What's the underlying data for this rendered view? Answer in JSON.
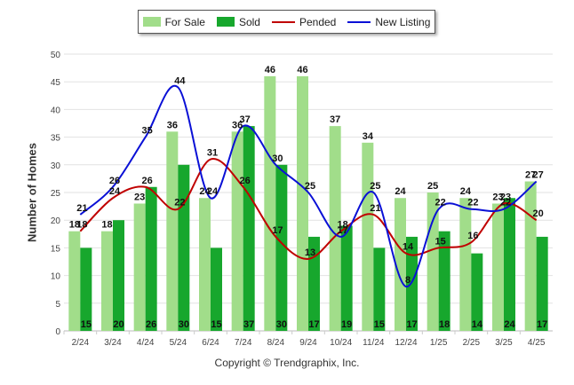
{
  "chart_data": {
    "type": "bar",
    "ylabel": "Number of Homes",
    "xlabel": "",
    "ylim": [
      0,
      50
    ],
    "yticks": [
      0,
      5,
      10,
      15,
      20,
      25,
      30,
      35,
      40,
      45,
      50
    ],
    "grid": true,
    "legend_position": "top-center",
    "categories": [
      "2/24",
      "3/24",
      "4/24",
      "5/24",
      "6/24",
      "7/24",
      "8/24",
      "9/24",
      "10/24",
      "11/24",
      "12/24",
      "1/25",
      "2/25",
      "3/25",
      "4/25"
    ],
    "series": [
      {
        "name": "For Sale",
        "type": "bar",
        "color": "#a1dd8a",
        "values": [
          18,
          18,
          23,
          36,
          24,
          36,
          46,
          46,
          37,
          34,
          24,
          25,
          24,
          23,
          27
        ]
      },
      {
        "name": "Sold",
        "type": "bar",
        "color": "#17a72d",
        "values": [
          15,
          20,
          26,
          30,
          15,
          37,
          30,
          17,
          19,
          15,
          17,
          18,
          14,
          24,
          17
        ]
      },
      {
        "name": "Pended",
        "type": "line",
        "color": "#c00000",
        "values": [
          18,
          24,
          26,
          22,
          31,
          26,
          17,
          13,
          18,
          21,
          14,
          15,
          16,
          23,
          20
        ]
      },
      {
        "name": "New Listing",
        "type": "line",
        "color": "#0a10d6",
        "values": [
          21,
          26,
          35,
          44,
          24,
          37,
          30,
          25,
          17,
          25,
          8,
          22,
          22,
          22,
          27
        ]
      }
    ]
  },
  "footer": {
    "copyright": "Copyright © Trendgraphix, Inc."
  }
}
